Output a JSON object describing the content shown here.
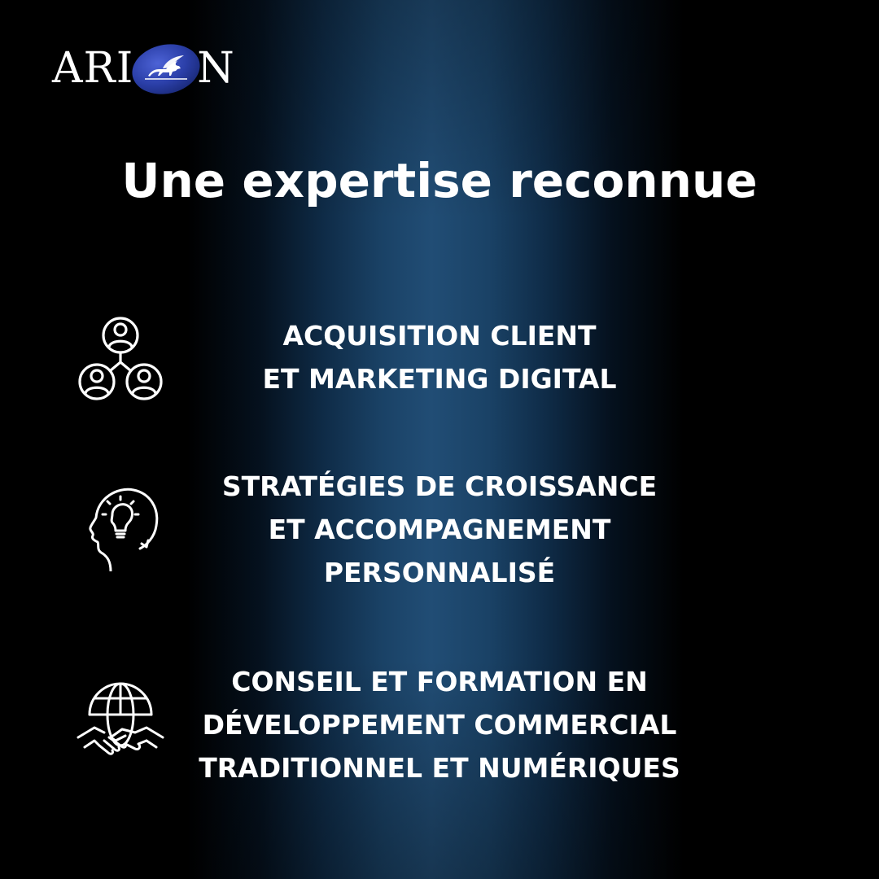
{
  "brand": {
    "logo_left": "ARI",
    "logo_right": "N",
    "logo_emblem": "pegasus-oval-emblem",
    "oval_color": "#2b3fa8"
  },
  "headline": "Une expertise reconnue",
  "items": [
    {
      "icon": "client-network-icon",
      "lines": [
        "ACQUISITION CLIENT",
        "ET MARKETING DIGITAL"
      ]
    },
    {
      "icon": "head-lightbulb-icon",
      "lines": [
        "STRATÉGIES DE CROISSANCE",
        "ET ACCOMPAGNEMENT",
        "PERSONNALISÉ"
      ]
    },
    {
      "icon": "globe-handshake-icon",
      "lines": [
        "CONSEIL ET FORMATION EN",
        "DÉVELOPPEMENT COMMERCIAL",
        "TRADITIONNEL ET NUMÉRIQUES"
      ]
    }
  ],
  "colors": {
    "background": "#000000",
    "glow": "#214d75",
    "text": "#ffffff"
  }
}
